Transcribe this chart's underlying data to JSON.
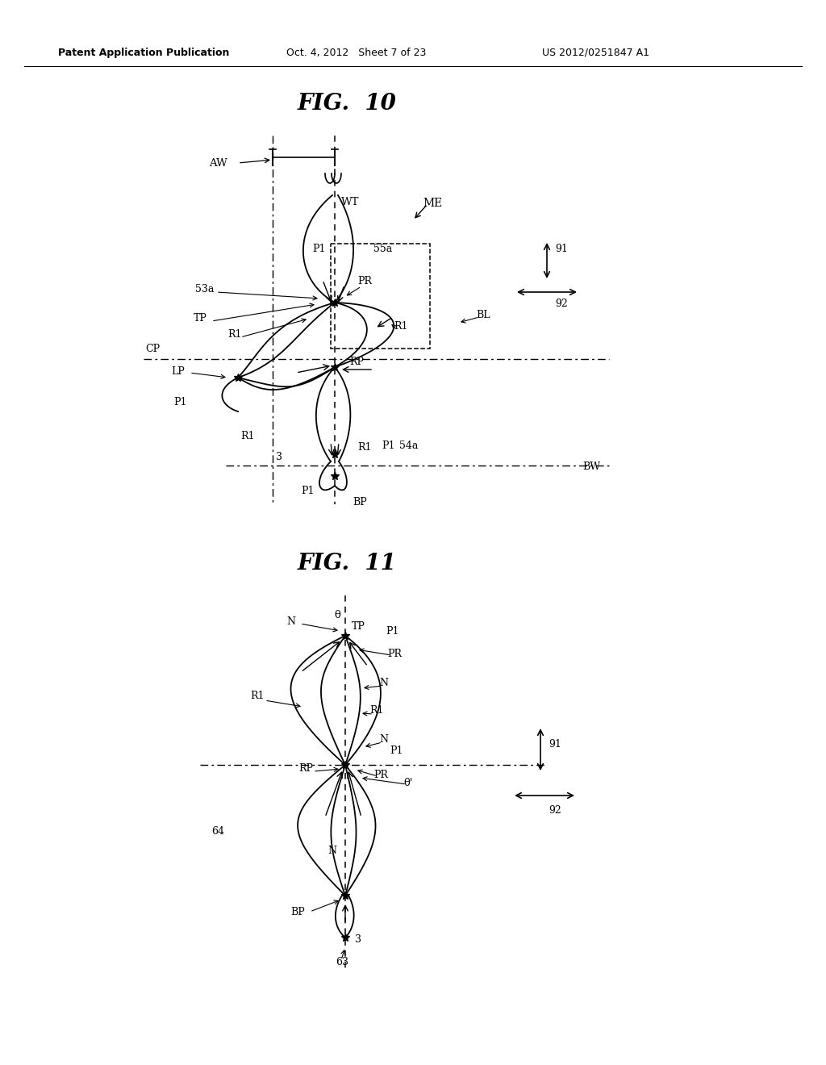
{
  "background_color": "#ffffff",
  "header_left": "Patent Application Publication",
  "header_center": "Oct. 4, 2012   Sheet 7 of 23",
  "header_right": "US 2012/0251847 A1",
  "fig10_title": "FIG.  10",
  "fig11_title": "FIG.  11"
}
